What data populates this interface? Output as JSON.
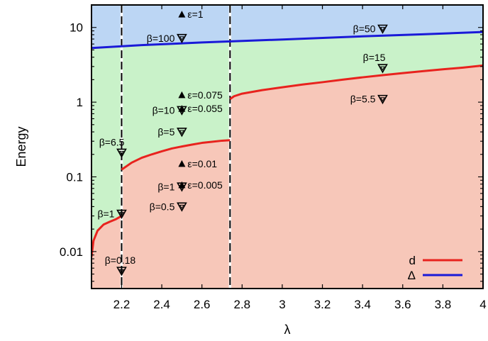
{
  "chart_data": {
    "type": "area",
    "xlabel": "λ",
    "ylabel": "Energy",
    "xlim": [
      2.05,
      4.0
    ],
    "ylim": [
      0.0032,
      20
    ],
    "yscale": "log",
    "grid": false,
    "legend_position": "bottom-right",
    "x_ticks": [
      "2.2",
      "2.4",
      "2.6",
      "2.8",
      "3",
      "3.2",
      "3.4",
      "3.6",
      "3.8",
      "4"
    ],
    "y_ticks": [
      "0.01",
      "0.1",
      "1",
      "10"
    ],
    "region_colors": {
      "top": "#bcd6f4",
      "middle": "#c9f2c9",
      "bottom": "#f7c7b9"
    },
    "vertical_lines": [
      2.2,
      2.74
    ],
    "series": [
      {
        "name": "d",
        "color": "#e8231e",
        "segments": [
          {
            "x": [
              2.05,
              2.06,
              2.08,
              2.11,
              2.14,
              2.17,
              2.2
            ],
            "y": [
              0.0085,
              0.014,
              0.019,
              0.023,
              0.025,
              0.027,
              0.03
            ]
          },
          {
            "x": [
              2.2,
              2.25,
              2.3,
              2.35,
              2.4,
              2.45,
              2.5,
              2.55,
              2.6,
              2.65,
              2.7,
              2.74
            ],
            "y": [
              0.125,
              0.155,
              0.18,
              0.2,
              0.22,
              0.24,
              0.255,
              0.27,
              0.285,
              0.295,
              0.305,
              0.31
            ]
          },
          {
            "x": [
              2.74,
              2.76,
              2.8,
              2.9,
              3.0,
              3.1,
              3.2,
              3.3,
              3.4,
              3.5,
              3.6,
              3.7,
              3.8,
              3.9,
              4.0
            ],
            "y": [
              1.1,
              1.2,
              1.3,
              1.45,
              1.58,
              1.72,
              1.85,
              2.0,
              2.15,
              2.3,
              2.45,
              2.6,
              2.75,
              2.9,
              3.1
            ]
          }
        ]
      },
      {
        "name": "Δ",
        "color": "#1a1ad8",
        "segments": [
          {
            "x": [
              2.05,
              2.3,
              2.6,
              3.0,
              3.4,
              3.7,
              4.0
            ],
            "y": [
              5.3,
              5.8,
              6.3,
              6.9,
              7.6,
              8.1,
              8.7
            ]
          }
        ]
      }
    ],
    "annotations": [
      {
        "x": 2.2,
        "y": 0.0055,
        "text": "β=0.18",
        "marker": "open-triangle-down",
        "label_pos": "above"
      },
      {
        "x": 2.2,
        "y": 0.032,
        "text": "β=1",
        "marker": "open-triangle-down",
        "label_pos": "left"
      },
      {
        "x": 2.2,
        "y": 0.21,
        "text": "β=6.5",
        "marker": "open-triangle-down",
        "label_pos": "above-left"
      },
      {
        "x": 2.5,
        "y": 0.04,
        "text": "β=0.5",
        "marker": "open-triangle-down",
        "label_pos": "left"
      },
      {
        "x": 2.5,
        "y": 0.074,
        "text": "β=1",
        "marker": "open-triangle-down",
        "label_pos": "left"
      },
      {
        "x": 2.5,
        "y": 0.4,
        "text": "β=5",
        "marker": "open-triangle-down",
        "label_pos": "left"
      },
      {
        "x": 2.5,
        "y": 0.78,
        "text": "β=10",
        "marker": "open-triangle-down",
        "label_pos": "left"
      },
      {
        "x": 2.5,
        "y": 7.2,
        "text": "β=100",
        "marker": "open-triangle-down",
        "label_pos": "left"
      },
      {
        "x": 3.5,
        "y": 1.1,
        "text": "β=5.5",
        "marker": "open-triangle-down",
        "label_pos": "left"
      },
      {
        "x": 3.5,
        "y": 2.85,
        "text": "β=15",
        "marker": "open-triangle-down",
        "label_pos": "above-left"
      },
      {
        "x": 3.5,
        "y": 9.6,
        "text": "β=50",
        "marker": "open-triangle-down",
        "label_pos": "left"
      },
      {
        "x": 2.5,
        "y": 0.078,
        "text": "ε=0.005",
        "marker": "filled-triangle-up",
        "label_pos": "right"
      },
      {
        "x": 2.5,
        "y": 0.15,
        "text": "ε=0.01",
        "marker": "filled-triangle-up",
        "label_pos": "right"
      },
      {
        "x": 2.5,
        "y": 0.82,
        "text": "ε=0.055",
        "marker": "filled-triangle-up",
        "label_pos": "right"
      },
      {
        "x": 2.5,
        "y": 1.25,
        "text": "ε=0.075",
        "marker": "filled-triangle-up",
        "label_pos": "right"
      },
      {
        "x": 2.5,
        "y": 15,
        "text": "ε=1",
        "marker": "filled-triangle-up",
        "label_pos": "right"
      }
    ]
  }
}
